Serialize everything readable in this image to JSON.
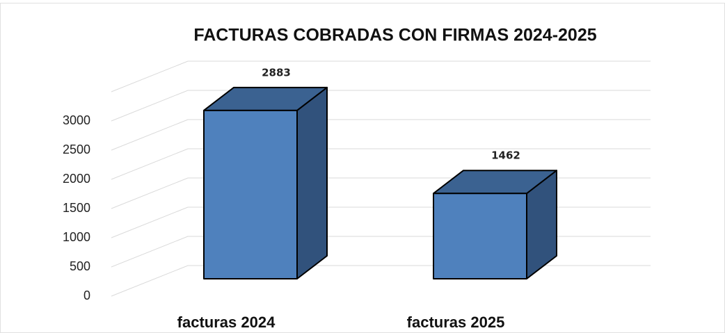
{
  "chart_data": {
    "type": "bar3d",
    "title": "FACTURAS COBRADAS CON FIRMAS 2024-2025",
    "categories": [
      "facturas 2024",
      "facturas 2025"
    ],
    "values": [
      2883,
      1462
    ],
    "color": "#4f81bd",
    "ylim": [
      0,
      3500
    ],
    "yticks": [
      0,
      500,
      1000,
      1500,
      2000,
      2500,
      3000
    ],
    "grid": true
  }
}
